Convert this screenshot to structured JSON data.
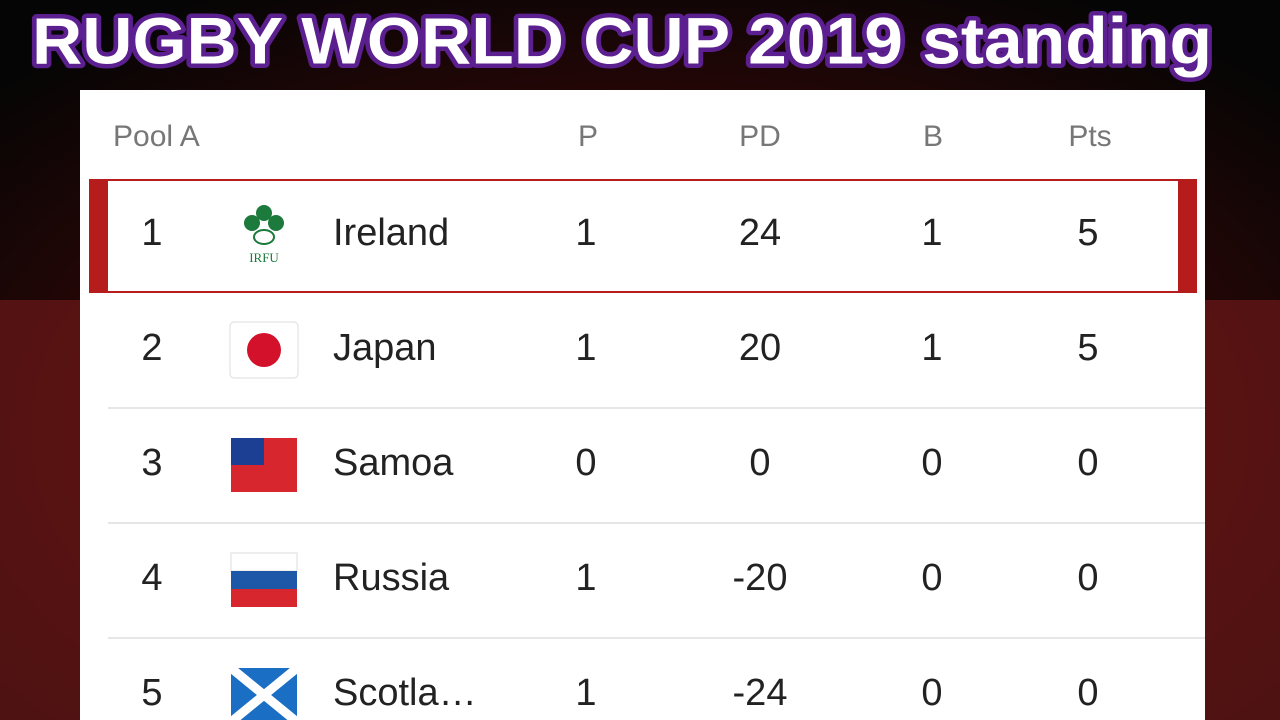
{
  "title": "RUGBY WORLD CUP 2019 standing",
  "table": {
    "header": [
      "Pool A",
      "P",
      "PD",
      "B",
      "Pts"
    ],
    "rows": [
      {
        "rank": 1,
        "team": "Ireland",
        "logo_text": "IRFU",
        "p": 1,
        "pd": 24,
        "b": 1,
        "pts": 5
      },
      {
        "rank": 2,
        "team": "Japan",
        "p": 1,
        "pd": 20,
        "b": 1,
        "pts": 5
      },
      {
        "rank": 3,
        "team": "Samoa",
        "p": 0,
        "pd": 0,
        "b": 0,
        "pts": 0
      },
      {
        "rank": 4,
        "team": "Russia",
        "p": 1,
        "pd": -20,
        "b": 0,
        "pts": 0
      },
      {
        "rank": 5,
        "team": "Scotla…",
        "p": 1,
        "pd": -24,
        "b": 0,
        "pts": 0
      }
    ]
  }
}
